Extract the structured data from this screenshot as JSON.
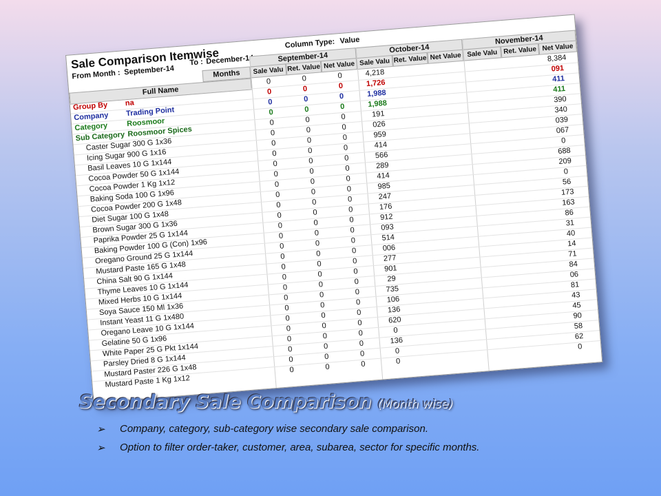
{
  "report": {
    "title": "Sale Comparison Itemwise",
    "from_label": "From Month :",
    "from_month": "September-14",
    "to_label": "To :",
    "to_month": "December-14",
    "column_type_label": "Column Type:",
    "column_type": "Value",
    "months_label": "Months",
    "full_name_label": "Full Name",
    "months": [
      "September-14",
      "October-14",
      "November-14"
    ],
    "subcolumns": [
      "Sale Valu",
      "Ret. Value",
      "Net Value"
    ],
    "total_row": [
      "0",
      "0",
      "0",
      "4,218",
      "8,384"
    ],
    "filters": [
      {
        "label": "Group By",
        "value": "na",
        "color": "#c00000",
        "cells": [
          "0",
          "0",
          "0",
          "1,726",
          "091"
        ]
      },
      {
        "label": "Company",
        "value": "Trading Point",
        "color": "#1f2fa0",
        "cells": [
          "0",
          "0",
          "0",
          "1,988",
          "411"
        ]
      },
      {
        "label": "Category",
        "value": "Roosmoor",
        "color": "#1a7a1a",
        "cells": [
          "0",
          "0",
          "0",
          "1,988",
          "411"
        ]
      },
      {
        "label": "Sub Category",
        "value": "Roosmoor Spices",
        "color": "#1a6a1a",
        "cells": [
          "0",
          "0",
          "0",
          "191",
          "390"
        ]
      }
    ],
    "rows": [
      [
        "Caster Sugar 300 G 1x36",
        "0",
        "0",
        "0",
        "026",
        "340"
      ],
      [
        "Icing Sugar 900 G 1x16",
        "0",
        "0",
        "0",
        "959",
        "039"
      ],
      [
        "Basil Leaves 10 G 1x144",
        "0",
        "0",
        "0",
        "414",
        "067"
      ],
      [
        "Cocoa Powder 50 G 1x144",
        "0",
        "0",
        "0",
        "566",
        "0"
      ],
      [
        "Cocoa Powder 1 Kg 1x12",
        "0",
        "0",
        "0",
        "289",
        "688"
      ],
      [
        "Baking Soda 100 G 1x96",
        "0",
        "0",
        "0",
        "414",
        "209"
      ],
      [
        "Cocoa Powder 200 G 1x48",
        "0",
        "0",
        "0",
        "985",
        "0"
      ],
      [
        "Diet Sugar 100 G 1x48",
        "0",
        "0",
        "0",
        "247",
        "56"
      ],
      [
        "Brown Sugar 300 G 1x36",
        "0",
        "0",
        "0",
        "176",
        "173"
      ],
      [
        "Paprika Powder 25 G 1x144",
        "0",
        "0",
        "0",
        "912",
        "163"
      ],
      [
        "Baking Powder 100 G (Con) 1x96",
        "0",
        "0",
        "0",
        "093",
        "86"
      ],
      [
        "Oregano Ground 25 G 1x144",
        "0",
        "0",
        "0",
        "514",
        "31"
      ],
      [
        "Mustard Paste 165 G 1x48",
        "0",
        "0",
        "0",
        "006",
        "40"
      ],
      [
        "China Salt 90 G 1x144",
        "0",
        "0",
        "0",
        "277",
        "14"
      ],
      [
        "Thyme Leaves 10 G 1x144",
        "0",
        "0",
        "0",
        "901",
        "71"
      ],
      [
        "Mixed Herbs 10 G 1x144",
        "0",
        "0",
        "0",
        "29",
        "84"
      ],
      [
        "Soya Sauce 150 Ml 1x36",
        "0",
        "0",
        "0",
        "735",
        "06"
      ],
      [
        "Instant Yeast 11 G 1x480",
        "0",
        "0",
        "0",
        "106",
        "81"
      ],
      [
        "Oregano Leave 10 G 1x144",
        "0",
        "0",
        "0",
        "136",
        "43"
      ],
      [
        "Gelatine 50 G 1x96",
        "0",
        "0",
        "0",
        "620",
        "45"
      ],
      [
        "White Paper 25 G Pkt 1x144",
        "0",
        "0",
        "0",
        "0",
        "90"
      ],
      [
        "Parsley Dried 8 G 1x144",
        "0",
        "0",
        "0",
        "136",
        "58"
      ],
      [
        "Mustard Paster 226 G 1x48",
        "0",
        "0",
        "0",
        "0",
        "62"
      ],
      [
        "Mustard Paste 1 Kg 1x12",
        "0",
        "0",
        "0",
        "0",
        "0"
      ]
    ]
  },
  "slide": {
    "title": "Secondary Sale Comparison",
    "title_note": "(Month wise)",
    "bullets": [
      "Company, category, sub-category wise secondary sale comparison.",
      "Option to filter order-taker, customer, area, subarea, sector for specific months."
    ]
  }
}
